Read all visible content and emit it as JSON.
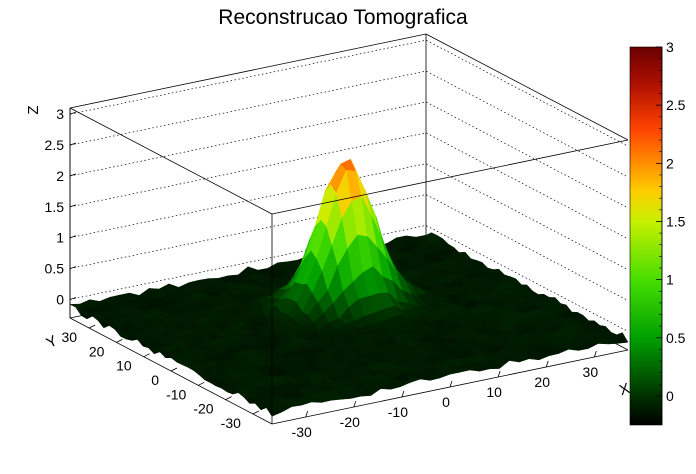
{
  "chart_data": {
    "type": "surface",
    "title": "Reconstrucao Tomografica",
    "xlabel": "X",
    "ylabel": "Y",
    "zlabel": "Z",
    "xlim": [
      -37,
      37
    ],
    "ylim": [
      -37,
      37
    ],
    "zlim": [
      -0.3,
      3.1
    ],
    "x_ticks": [
      -30,
      -20,
      -10,
      0,
      10,
      20,
      30
    ],
    "y_ticks": [
      -30,
      -20,
      -10,
      0,
      10,
      20,
      30
    ],
    "z_ticks": [
      0,
      0.5,
      1,
      1.5,
      2,
      2.5,
      3
    ],
    "peak": {
      "x": 5,
      "y": 10,
      "z": 2.3
    },
    "colorbar": {
      "min": -0.25,
      "max": 3,
      "ticks": [
        0,
        0.5,
        1,
        1.5,
        2,
        2.5,
        3
      ],
      "colors": [
        "#000000",
        "#00b400",
        "#b4f000",
        "#ff6600",
        "#800000"
      ]
    },
    "grid": true,
    "legend": "colorbar-right"
  }
}
